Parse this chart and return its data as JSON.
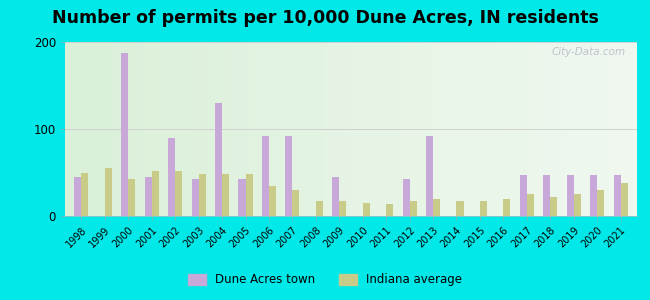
{
  "title": "Number of permits per 10,000 Dune Acres, IN residents",
  "years": [
    1998,
    1999,
    2000,
    2001,
    2002,
    2003,
    2004,
    2005,
    2006,
    2007,
    2008,
    2009,
    2010,
    2011,
    2012,
    2013,
    2014,
    2015,
    2016,
    2017,
    2018,
    2019,
    2020,
    2021
  ],
  "dune_acres": [
    45,
    0,
    187,
    45,
    90,
    42,
    130,
    42,
    92,
    92,
    0,
    45,
    0,
    0,
    42,
    92,
    0,
    0,
    0,
    47,
    47,
    47,
    47,
    47
  ],
  "indiana_avg": [
    50,
    55,
    42,
    52,
    52,
    48,
    48,
    48,
    35,
    30,
    17,
    17,
    15,
    14,
    17,
    20,
    17,
    17,
    20,
    25,
    22,
    25,
    30,
    38
  ],
  "dune_color": "#c8a8d8",
  "indiana_color": "#c8cc88",
  "outer_bg": "#00e8e8",
  "plot_bg_left": "#daf0d8",
  "plot_bg_right": "#f0f8f0",
  "ylim": [
    0,
    200
  ],
  "yticks": [
    0,
    100,
    200
  ],
  "bar_width": 0.3,
  "title_fontsize": 12.5,
  "watermark": "City-Data.com"
}
